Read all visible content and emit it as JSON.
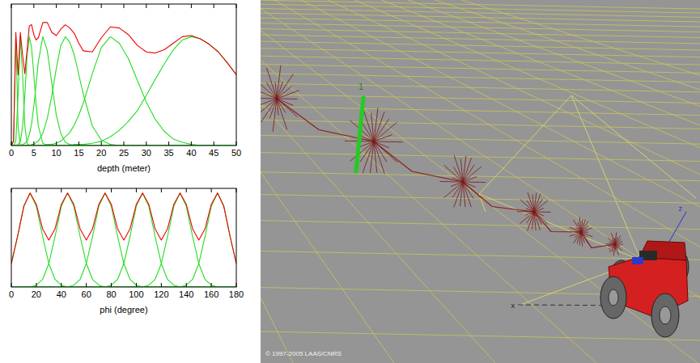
{
  "chart_data": [
    {
      "type": "line",
      "x_label": "depth (meter)",
      "xlim": [
        0,
        50
      ],
      "xticks": [
        0,
        5,
        10,
        15,
        20,
        25,
        30,
        35,
        40,
        45,
        50
      ],
      "ylim": [
        0,
        1.3
      ],
      "tick_labels": "x",
      "grid": false,
      "x": [
        0,
        0.5,
        1,
        1.5,
        2,
        2.5,
        3,
        3.5,
        4,
        4.5,
        5,
        5.5,
        6,
        7,
        8,
        9,
        10,
        11,
        12,
        13,
        14,
        15,
        16,
        18,
        20,
        22,
        24,
        26,
        28,
        30,
        32,
        34,
        36,
        38,
        40,
        42,
        44,
        46,
        48,
        50
      ],
      "series": [
        {
          "color": "#22dd22",
          "values": [
            0,
            0.04,
            1,
            0.18,
            0,
            0,
            0,
            0,
            0,
            0,
            0,
            0,
            0,
            0,
            0,
            0,
            0,
            0,
            0,
            0,
            0,
            0,
            0,
            0,
            0,
            0,
            0,
            0,
            0,
            0,
            0,
            0,
            0,
            0,
            0,
            0,
            0,
            0,
            0,
            0
          ]
        },
        {
          "color": "#22dd22",
          "values": [
            0,
            0,
            0.04,
            0.46,
            1,
            0.65,
            0.18,
            0.02,
            0,
            0,
            0,
            0,
            0,
            0,
            0,
            0,
            0,
            0,
            0,
            0,
            0,
            0,
            0,
            0,
            0,
            0,
            0,
            0,
            0,
            0,
            0,
            0,
            0,
            0,
            0,
            0,
            0,
            0,
            0,
            0
          ]
        },
        {
          "color": "#22dd22",
          "values": [
            0,
            0,
            0,
            0.01,
            0.04,
            0.17,
            0.46,
            0.82,
            1,
            0.9,
            0.65,
            0.38,
            0.18,
            0.02,
            0,
            0,
            0,
            0,
            0,
            0,
            0,
            0,
            0,
            0,
            0,
            0,
            0,
            0,
            0,
            0,
            0,
            0,
            0,
            0,
            0,
            0,
            0,
            0,
            0,
            0
          ]
        },
        {
          "color": "#22dd22",
          "values": [
            0,
            0,
            0,
            0,
            0,
            0.01,
            0.02,
            0.04,
            0.1,
            0.2,
            0.36,
            0.56,
            0.77,
            1,
            0.87,
            0.57,
            0.28,
            0.11,
            0.03,
            0.01,
            0,
            0,
            0,
            0,
            0,
            0,
            0,
            0,
            0,
            0,
            0,
            0,
            0,
            0,
            0,
            0,
            0,
            0,
            0,
            0
          ]
        },
        {
          "color": "#22dd22",
          "values": [
            0,
            0,
            0,
            0,
            0,
            0,
            0,
            0,
            0,
            0.01,
            0.01,
            0.03,
            0.04,
            0.11,
            0.25,
            0.46,
            0.71,
            0.92,
            1,
            0.95,
            0.83,
            0.65,
            0.47,
            0.18,
            0.05,
            0.01,
            0,
            0,
            0,
            0,
            0,
            0,
            0,
            0,
            0,
            0,
            0,
            0,
            0,
            0
          ]
        },
        {
          "color": "#22dd22",
          "values": [
            0,
            0,
            0,
            0,
            0,
            0,
            0,
            0,
            0,
            0,
            0,
            0,
            0,
            0,
            0.01,
            0.01,
            0.02,
            0.04,
            0.08,
            0.12,
            0.19,
            0.28,
            0.39,
            0.66,
            0.9,
            1,
            0.94,
            0.8,
            0.6,
            0.4,
            0.24,
            0.13,
            0.06,
            0.03,
            0.01,
            0,
            0,
            0,
            0,
            0
          ]
        },
        {
          "color": "#22dd22",
          "values": [
            0,
            0,
            0,
            0,
            0,
            0,
            0,
            0,
            0,
            0,
            0,
            0,
            0,
            0,
            0,
            0,
            0,
            0,
            0,
            0,
            0.01,
            0.01,
            0.01,
            0.02,
            0.04,
            0.08,
            0.14,
            0.22,
            0.32,
            0.46,
            0.61,
            0.75,
            0.88,
            0.97,
            1,
            0.98,
            0.93,
            0.86,
            0.76,
            0.65
          ]
        },
        {
          "color": "#ee0000",
          "values": [
            0,
            0.04,
            1.04,
            0.65,
            1.04,
            0.83,
            0.66,
            0.88,
            1.1,
            1.11,
            1.02,
            0.97,
            0.99,
            1.13,
            1.13,
            1.04,
            1.01,
            1.07,
            1.11,
            1.08,
            1.03,
            0.94,
            0.87,
            0.86,
            0.99,
            1.09,
            1.08,
            1.02,
            0.92,
            0.86,
            0.85,
            0.88,
            0.94,
            1,
            1.01,
            0.98,
            0.93,
            0.86,
            0.76,
            0.65
          ]
        }
      ]
    },
    {
      "type": "line",
      "x_label": "phi (degree)",
      "xlim": [
        0,
        180
      ],
      "xticks": [
        0,
        20,
        40,
        60,
        80,
        100,
        120,
        140,
        160,
        180
      ],
      "ylim": [
        0,
        1.05
      ],
      "tick_labels": "x",
      "grid": false,
      "x": [
        0,
        5,
        10,
        15,
        20,
        25,
        30,
        35,
        40,
        45,
        50,
        55,
        60,
        65,
        70,
        75,
        80,
        85,
        90,
        95,
        100,
        105,
        110,
        115,
        120,
        125,
        130,
        135,
        140,
        145,
        150,
        155,
        160,
        165,
        170,
        175,
        180
      ],
      "series": [
        {
          "color": "#22dd22",
          "values": [
            0.25,
            0.54,
            0.86,
            1,
            0.86,
            0.54,
            0.25,
            0.08,
            0.02,
            0,
            0,
            0,
            0,
            0,
            0,
            0,
            0,
            0,
            0,
            0,
            0,
            0,
            0,
            0,
            0,
            0,
            0,
            0,
            0,
            0,
            0,
            0,
            0,
            0,
            0,
            0,
            0
          ]
        },
        {
          "color": "#22dd22",
          "values": [
            0,
            0,
            0,
            0,
            0.02,
            0.08,
            0.25,
            0.54,
            0.86,
            1,
            0.86,
            0.54,
            0.25,
            0.08,
            0.02,
            0,
            0,
            0,
            0,
            0,
            0,
            0,
            0,
            0,
            0,
            0,
            0,
            0,
            0,
            0,
            0,
            0,
            0,
            0,
            0,
            0,
            0
          ]
        },
        {
          "color": "#22dd22",
          "values": [
            0,
            0,
            0,
            0,
            0,
            0,
            0,
            0,
            0,
            0,
            0.02,
            0.08,
            0.25,
            0.54,
            0.86,
            1,
            0.86,
            0.54,
            0.25,
            0.08,
            0.02,
            0,
            0,
            0,
            0,
            0,
            0,
            0,
            0,
            0,
            0,
            0,
            0,
            0,
            0,
            0,
            0
          ]
        },
        {
          "color": "#22dd22",
          "values": [
            0,
            0,
            0,
            0,
            0,
            0,
            0,
            0,
            0,
            0,
            0,
            0,
            0,
            0,
            0,
            0,
            0.02,
            0.08,
            0.25,
            0.54,
            0.86,
            1,
            0.86,
            0.54,
            0.25,
            0.08,
            0.02,
            0,
            0,
            0,
            0,
            0,
            0,
            0,
            0,
            0,
            0
          ]
        },
        {
          "color": "#22dd22",
          "values": [
            0,
            0,
            0,
            0,
            0,
            0,
            0,
            0,
            0,
            0,
            0,
            0,
            0,
            0,
            0,
            0,
            0,
            0,
            0,
            0,
            0,
            0,
            0.02,
            0.08,
            0.25,
            0.54,
            0.86,
            1,
            0.86,
            0.54,
            0.25,
            0.08,
            0.02,
            0,
            0,
            0,
            0
          ]
        },
        {
          "color": "#22dd22",
          "values": [
            0,
            0,
            0,
            0,
            0,
            0,
            0,
            0,
            0,
            0,
            0,
            0,
            0,
            0,
            0,
            0,
            0,
            0,
            0,
            0,
            0,
            0,
            0,
            0,
            0,
            0,
            0,
            0,
            0.02,
            0.08,
            0.25,
            0.54,
            0.86,
            1,
            0.86,
            0.54,
            0.25
          ]
        },
        {
          "color": "#ee0000",
          "values": [
            0.25,
            0.54,
            0.86,
            1,
            0.88,
            0.62,
            0.5,
            0.62,
            0.88,
            1,
            0.88,
            0.62,
            0.5,
            0.62,
            0.88,
            1,
            0.88,
            0.62,
            0.5,
            0.62,
            0.88,
            1,
            0.88,
            0.62,
            0.5,
            0.62,
            0.88,
            1,
            0.88,
            0.62,
            0.5,
            0.62,
            0.88,
            1,
            0.86,
            0.54,
            0.25
          ]
        }
      ]
    }
  ],
  "scene": {
    "landmark_label": "1",
    "frame_labels": [
      "x",
      "z"
    ],
    "copyright": "© 1997-2005 LAAS/CNRS"
  }
}
